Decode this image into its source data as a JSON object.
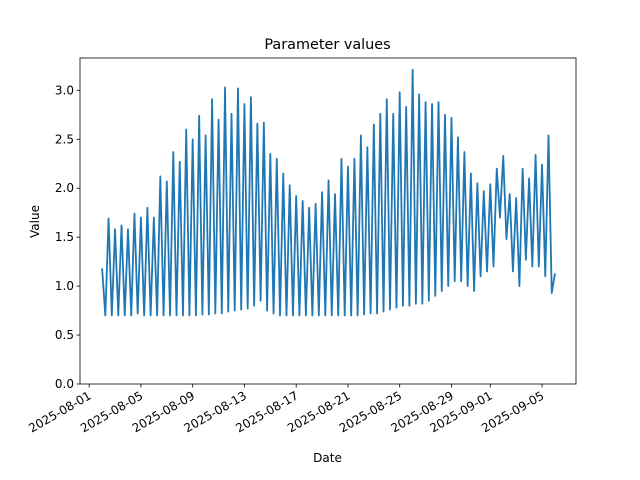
{
  "chart_data": {
    "type": "line",
    "title": "Parameter values",
    "xlabel": "Date",
    "ylabel": "Value",
    "x": [
      "2025-08-02 00:00",
      "2025-08-02 06:00",
      "2025-08-02 12:00",
      "2025-08-02 18:00",
      "2025-08-03 00:00",
      "2025-08-03 06:00",
      "2025-08-03 12:00",
      "2025-08-03 18:00",
      "2025-08-04 00:00",
      "2025-08-04 06:00",
      "2025-08-04 12:00",
      "2025-08-04 18:00",
      "2025-08-05 00:00",
      "2025-08-05 06:00",
      "2025-08-05 12:00",
      "2025-08-05 18:00",
      "2025-08-06 00:00",
      "2025-08-06 06:00",
      "2025-08-06 12:00",
      "2025-08-06 18:00",
      "2025-08-07 00:00",
      "2025-08-07 06:00",
      "2025-08-07 12:00",
      "2025-08-07 18:00",
      "2025-08-08 00:00",
      "2025-08-08 06:00",
      "2025-08-08 12:00",
      "2025-08-08 18:00",
      "2025-08-09 00:00",
      "2025-08-09 06:00",
      "2025-08-09 12:00",
      "2025-08-09 18:00",
      "2025-08-10 00:00",
      "2025-08-10 06:00",
      "2025-08-10 12:00",
      "2025-08-10 18:00",
      "2025-08-11 00:00",
      "2025-08-11 06:00",
      "2025-08-11 12:00",
      "2025-08-11 18:00",
      "2025-08-12 00:00",
      "2025-08-12 06:00",
      "2025-08-12 12:00",
      "2025-08-12 18:00",
      "2025-08-13 00:00",
      "2025-08-13 06:00",
      "2025-08-13 12:00",
      "2025-08-13 18:00",
      "2025-08-14 00:00",
      "2025-08-14 06:00",
      "2025-08-14 12:00",
      "2025-08-14 18:00",
      "2025-08-15 00:00",
      "2025-08-15 06:00",
      "2025-08-15 12:00",
      "2025-08-15 18:00",
      "2025-08-16 00:00",
      "2025-08-16 06:00",
      "2025-08-16 12:00",
      "2025-08-16 18:00",
      "2025-08-17 00:00",
      "2025-08-17 06:00",
      "2025-08-17 12:00",
      "2025-08-17 18:00",
      "2025-08-18 00:00",
      "2025-08-18 06:00",
      "2025-08-18 12:00",
      "2025-08-18 18:00",
      "2025-08-19 00:00",
      "2025-08-19 06:00",
      "2025-08-19 12:00",
      "2025-08-19 18:00",
      "2025-08-20 00:00",
      "2025-08-20 06:00",
      "2025-08-20 12:00",
      "2025-08-20 18:00",
      "2025-08-21 00:00",
      "2025-08-21 06:00",
      "2025-08-21 12:00",
      "2025-08-21 18:00",
      "2025-08-22 00:00",
      "2025-08-22 06:00",
      "2025-08-22 12:00",
      "2025-08-22 18:00",
      "2025-08-23 00:00",
      "2025-08-23 06:00",
      "2025-08-23 12:00",
      "2025-08-23 18:00",
      "2025-08-24 00:00",
      "2025-08-24 06:00",
      "2025-08-24 12:00",
      "2025-08-24 18:00",
      "2025-08-25 00:00",
      "2025-08-25 06:00",
      "2025-08-25 12:00",
      "2025-08-25 18:00",
      "2025-08-26 00:00",
      "2025-08-26 06:00",
      "2025-08-26 12:00",
      "2025-08-26 18:00",
      "2025-08-27 00:00",
      "2025-08-27 06:00",
      "2025-08-27 12:00",
      "2025-08-27 18:00",
      "2025-08-28 00:00",
      "2025-08-28 06:00",
      "2025-08-28 12:00",
      "2025-08-28 18:00",
      "2025-08-29 00:00",
      "2025-08-29 06:00",
      "2025-08-29 12:00",
      "2025-08-29 18:00",
      "2025-08-30 00:00",
      "2025-08-30 06:00",
      "2025-08-30 12:00",
      "2025-08-30 18:00",
      "2025-08-31 00:00",
      "2025-08-31 06:00",
      "2025-08-31 12:00",
      "2025-08-31 18:00",
      "2025-09-01 00:00",
      "2025-09-01 06:00",
      "2025-09-01 12:00",
      "2025-09-01 18:00",
      "2025-09-02 00:00",
      "2025-09-02 06:00",
      "2025-09-02 12:00",
      "2025-09-02 18:00",
      "2025-09-03 00:00",
      "2025-09-03 06:00",
      "2025-09-03 12:00",
      "2025-09-03 18:00",
      "2025-09-04 00:00",
      "2025-09-04 06:00",
      "2025-09-04 12:00",
      "2025-09-04 18:00",
      "2025-09-05 00:00",
      "2025-09-05 06:00",
      "2025-09-05 12:00",
      "2025-09-05 18:00",
      "2025-09-06 00:00"
    ],
    "series": [
      {
        "name": "Value",
        "color": "#1f77b4",
        "values": [
          1.18,
          0.7,
          1.69,
          0.7,
          1.58,
          0.7,
          1.62,
          0.7,
          1.58,
          0.7,
          1.74,
          0.72,
          1.7,
          0.7,
          1.8,
          0.7,
          1.7,
          0.7,
          2.12,
          0.7,
          2.07,
          0.7,
          2.37,
          0.7,
          2.27,
          0.7,
          2.6,
          0.7,
          2.5,
          0.7,
          2.74,
          0.71,
          2.54,
          0.71,
          2.91,
          0.72,
          2.7,
          0.72,
          3.03,
          0.74,
          2.76,
          0.75,
          3.02,
          0.76,
          2.86,
          0.77,
          2.93,
          0.8,
          2.66,
          0.85,
          2.67,
          0.75,
          2.35,
          0.72,
          2.3,
          0.7,
          2.15,
          0.7,
          2.03,
          0.7,
          1.92,
          0.7,
          1.87,
          0.7,
          1.8,
          0.7,
          1.84,
          0.7,
          1.96,
          0.7,
          2.08,
          0.7,
          1.94,
          0.7,
          2.3,
          0.7,
          2.22,
          0.7,
          2.3,
          0.7,
          2.54,
          0.71,
          2.42,
          0.72,
          2.65,
          0.72,
          2.76,
          0.74,
          2.91,
          0.76,
          2.76,
          0.78,
          2.98,
          0.8,
          2.83,
          0.8,
          3.21,
          0.82,
          2.96,
          0.82,
          2.88,
          0.85,
          2.86,
          0.9,
          2.88,
          0.95,
          2.75,
          1.0,
          2.72,
          1.05,
          2.52,
          1.05,
          2.37,
          1.0,
          2.15,
          0.95,
          2.05,
          1.1,
          1.97,
          1.15,
          2.04,
          1.2,
          2.2,
          1.7,
          2.33,
          1.48,
          1.94,
          1.15,
          1.9,
          1.0,
          2.2,
          1.27,
          2.1,
          1.2,
          2.34,
          1.2,
          2.24,
          1.1,
          2.54,
          0.93,
          1.13
        ]
      }
    ],
    "xlim": [
      "2025-07-31 07:00",
      "2025-09-07 15:00"
    ],
    "xticks": [
      "2025-08-01",
      "2025-08-05",
      "2025-08-09",
      "2025-08-13",
      "2025-08-17",
      "2025-08-21",
      "2025-08-25",
      "2025-08-29",
      "2025-09-01",
      "2025-09-05"
    ],
    "ylim": [
      0,
      3.33
    ],
    "yticks": [
      {
        "value": 0,
        "label": "0.0"
      },
      {
        "value": 0.5,
        "label": "0.5"
      },
      {
        "value": 1,
        "label": "1.0"
      },
      {
        "value": 1.5,
        "label": "1.5"
      },
      {
        "value": 2,
        "label": "2.0"
      },
      {
        "value": 2.5,
        "label": "2.5"
      },
      {
        "value": 3,
        "label": "3.0"
      }
    ],
    "grid": false
  }
}
